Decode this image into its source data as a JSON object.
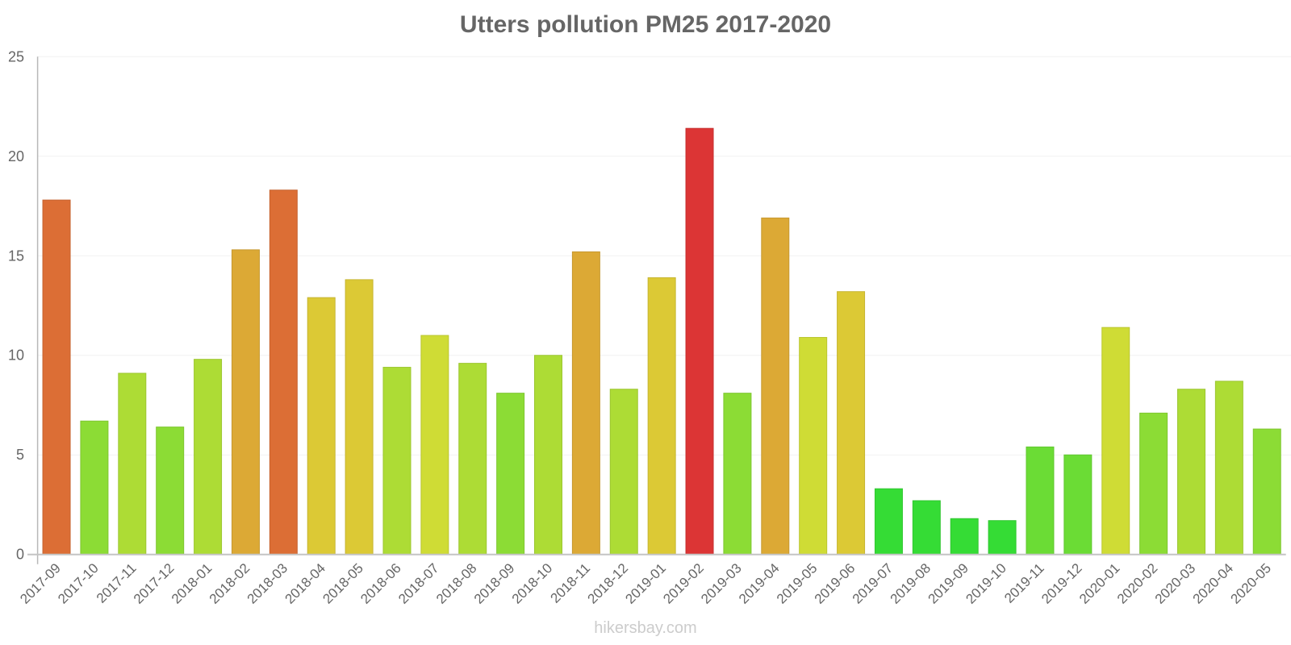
{
  "chart": {
    "title": "Utters pollution PM25 2017-2020",
    "watermark": "hikersbay.com"
  },
  "chart_data": {
    "type": "bar",
    "title": "Utters pollution PM25 2017-2020",
    "xlabel": "",
    "ylabel": "",
    "ylim": [
      0,
      25
    ],
    "yticks": [
      0,
      5,
      10,
      15,
      20,
      25
    ],
    "grid": true,
    "legend": null,
    "categories": [
      "2017-09",
      "2017-10",
      "2017-11",
      "2017-12",
      "2018-01",
      "2018-02",
      "2018-03",
      "2018-04",
      "2018-05",
      "2018-06",
      "2018-07",
      "2018-08",
      "2018-09",
      "2018-10",
      "2018-11",
      "2018-12",
      "2019-01",
      "2019-02",
      "2019-03",
      "2019-04",
      "2019-05",
      "2019-06",
      "2019-07",
      "2019-08",
      "2019-09",
      "2019-10",
      "2019-11",
      "2019-12",
      "2020-01",
      "2020-02",
      "2020-03",
      "2020-04",
      "2020-05"
    ],
    "values": [
      17.8,
      6.7,
      9.1,
      6.4,
      9.8,
      15.3,
      18.3,
      12.9,
      13.8,
      9.4,
      11.0,
      9.6,
      8.1,
      10.0,
      15.2,
      8.3,
      13.9,
      21.4,
      8.1,
      16.9,
      10.9,
      13.2,
      3.3,
      2.7,
      1.8,
      1.7,
      5.4,
      5.0,
      11.4,
      7.1,
      8.3,
      8.7,
      6.3
    ],
    "colors": [
      "#dc6e35",
      "#8cdc35",
      "#addc35",
      "#8cdc35",
      "#addc35",
      "#dca935",
      "#dc6e35",
      "#dcc935",
      "#dcc935",
      "#addc35",
      "#cfdc35",
      "#addc35",
      "#8cdc35",
      "#addc35",
      "#dca935",
      "#addc35",
      "#dcc935",
      "#dc3535",
      "#8cdc35",
      "#dca935",
      "#cfdc35",
      "#dcc935",
      "#35dc35",
      "#35dc35",
      "#35dc35",
      "#35dc35",
      "#6bdc35",
      "#6bdc35",
      "#cfdc35",
      "#8cdc35",
      "#addc35",
      "#addc35",
      "#8cdc35"
    ]
  }
}
